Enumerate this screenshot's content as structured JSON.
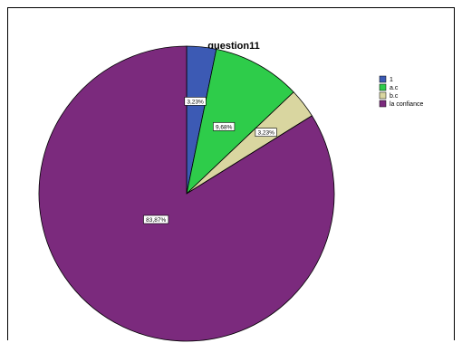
{
  "chart_data": {
    "type": "pie",
    "title": "question11",
    "categories": [
      "1",
      "a.c",
      "b.c",
      "la confiance"
    ],
    "values": [
      3.23,
      9.68,
      3.23,
      83.87
    ],
    "labels": [
      "3,23%",
      "9,68%",
      "3,23%",
      "83,87%"
    ],
    "colors": [
      "#3c5ab4",
      "#2ecc4a",
      "#d9d6a0",
      "#7b2a7d"
    ],
    "legend_position": "right"
  }
}
